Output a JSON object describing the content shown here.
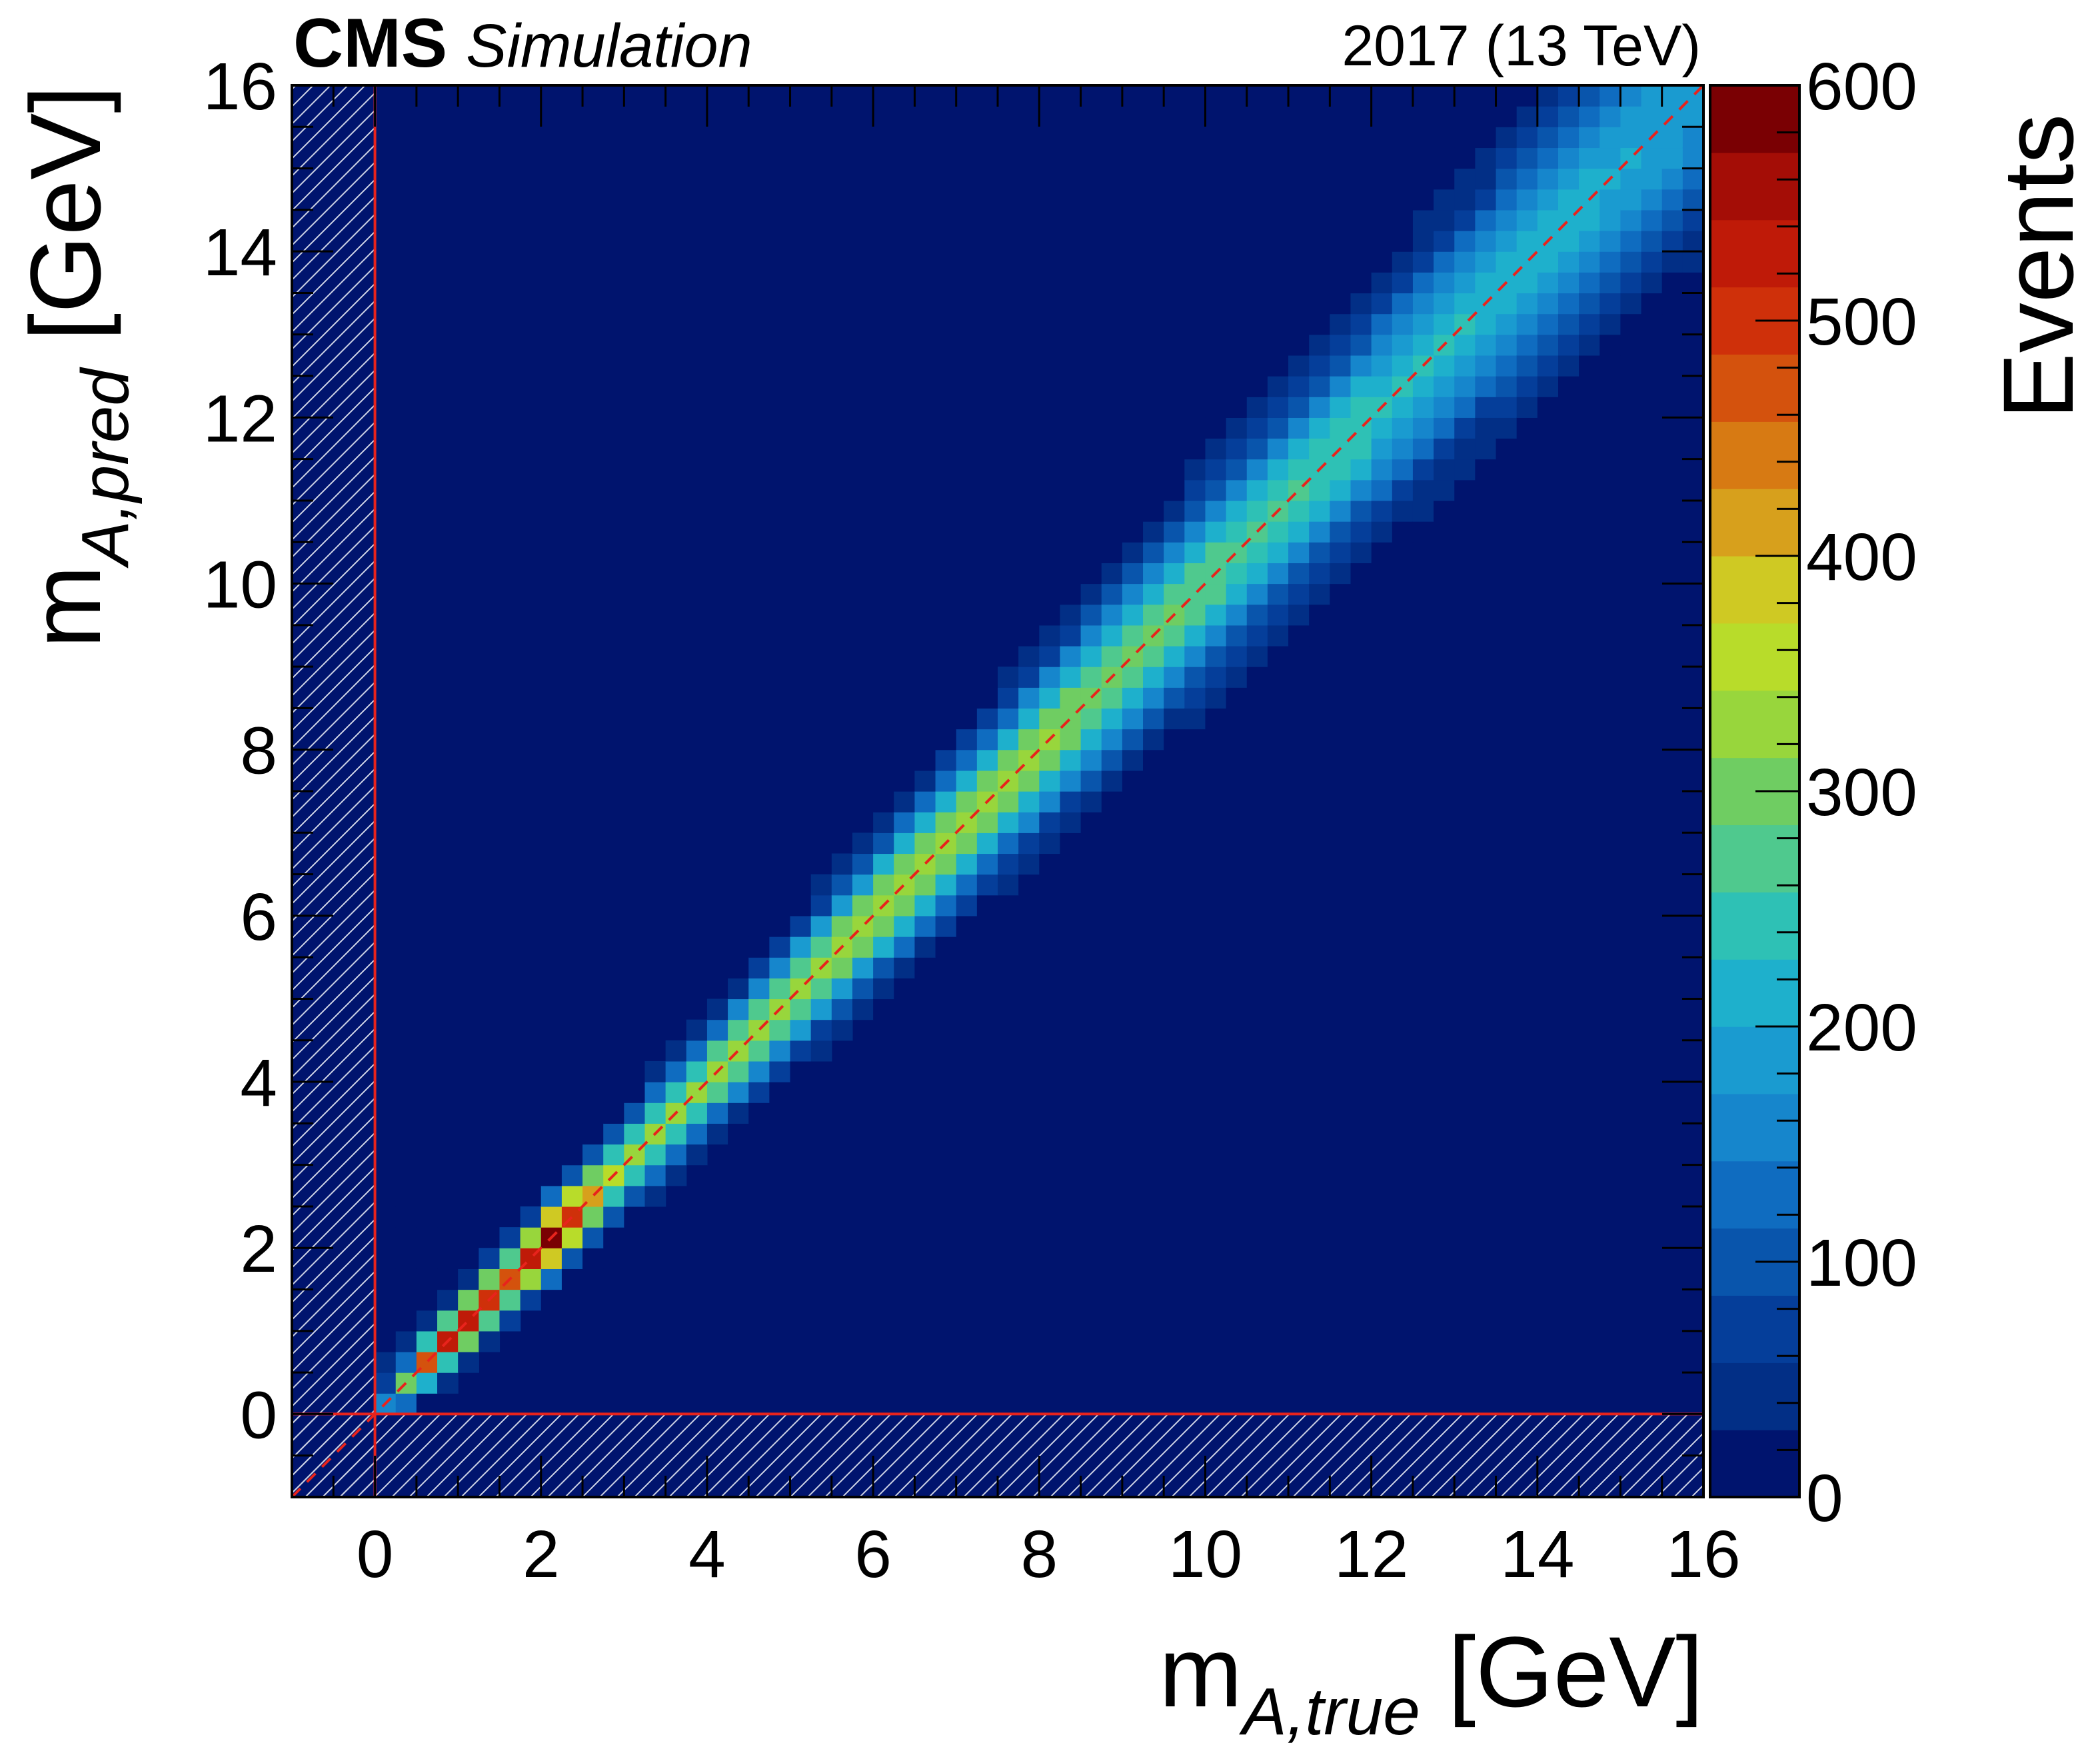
{
  "header": {
    "experiment": "CMS",
    "label": "Simulation",
    "lumi": "2017 (13 TeV)"
  },
  "chart_data": {
    "type": "heatmap",
    "xlabel": {
      "main": "m",
      "sub": "A,true",
      "unit": " [GeV]"
    },
    "ylabel": {
      "main": "m",
      "sub": "A,pred",
      "unit": " [GeV]"
    },
    "zlabel": "Events",
    "xlim": [
      -1,
      16
    ],
    "ylim": [
      -1,
      16
    ],
    "zlim": [
      0,
      600
    ],
    "bin_width": 0.25,
    "x_ticks": [
      0,
      2,
      4,
      6,
      8,
      10,
      12,
      14,
      16
    ],
    "y_ticks": [
      0,
      2,
      4,
      6,
      8,
      10,
      12,
      14,
      16
    ],
    "z_ticks": [
      0,
      100,
      200,
      300,
      400,
      500,
      600
    ],
    "hatched_regions": [
      "x < 0",
      "y < 0"
    ],
    "reference_lines": {
      "x": 0,
      "y": 0,
      "diagonal": "y = x"
    },
    "diagonal_peak_counts": [
      {
        "x": 0.125,
        "counts": 150
      },
      {
        "x": 0.375,
        "counts": 300
      },
      {
        "x": 0.625,
        "counts": 480
      },
      {
        "x": 0.875,
        "counts": 520
      },
      {
        "x": 1.125,
        "counts": 540
      },
      {
        "x": 1.375,
        "counts": 500
      },
      {
        "x": 1.625,
        "counts": 470
      },
      {
        "x": 1.875,
        "counts": 520
      },
      {
        "x": 2.125,
        "counts": 590
      },
      {
        "x": 2.375,
        "counts": 500
      },
      {
        "x": 2.625,
        "counts": 420
      },
      {
        "x": 2.875,
        "counts": 350
      },
      {
        "x": 3.5,
        "counts": 320
      },
      {
        "x": 4.5,
        "counts": 320
      },
      {
        "x": 6.0,
        "counts": 340
      },
      {
        "x": 8.0,
        "counts": 320
      },
      {
        "x": 10.0,
        "counts": 280
      },
      {
        "x": 12.0,
        "counts": 240
      },
      {
        "x": 14.0,
        "counts": 220
      },
      {
        "x": 15.875,
        "counts": 190
      }
    ],
    "colorscale": [
      "#00146e",
      "#022f86",
      "#053e9a",
      "#0955ac",
      "#0f6cc0",
      "#1686cc",
      "#1a9bd0",
      "#1eb0cc",
      "#2ec1b5",
      "#4fc98e",
      "#6fcd62",
      "#98d63c",
      "#b8dc2a",
      "#cfc923",
      "#d7a01c",
      "#d77a13",
      "#d4520d",
      "#cf300a",
      "#bf1a08",
      "#a40d06",
      "#7a0003"
    ]
  }
}
